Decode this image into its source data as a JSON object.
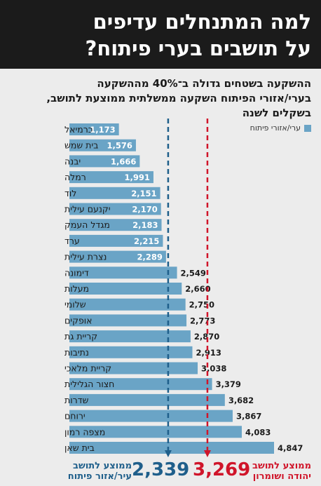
{
  "header": {
    "title_line1": "למה המתנחלים עדיפים",
    "title_line2": "על תושבים בערי פיתוח?"
  },
  "subtitle": {
    "line1": "ההשקעה בשטחים גדולה ב־40% מההשקעה",
    "line2": "בערי/אזורי הפיתוח השקעה ממשלתית ממוצעת לתושב,",
    "line3": "בשקלים לשנה"
  },
  "legend": {
    "label": "ערי/אזורי פיתוח"
  },
  "colors": {
    "bar": "#6aa4c6",
    "avg_dev": "#1f5f8b",
    "avg_settle": "#d0152a",
    "header_bg": "#1b1b1b"
  },
  "averages": {
    "dev_value": "2,339",
    "dev_label_line1": "ממוצע לתושב",
    "dev_label_line2": "עיר/אזור פיתוח",
    "settle_value": "3,269",
    "settle_label_line1": "ממוצע לתושב",
    "settle_label_line2": "יהודה ושומרון"
  },
  "chart_data": {
    "type": "bar",
    "orientation": "horizontal",
    "title": "ההשקעה בשטחים גדולה ב־40% מההשקעה בערי/אזורי הפיתוח השקעה ממשלתית ממוצעת לתושב, בשקלים לשנה",
    "unit": "שקלים לשנה",
    "categories": [
      "כרמיאל",
      "בית שמש",
      "יבנה",
      "רמלה",
      "לוד",
      "יקנעם עילית",
      "מגדל העמק",
      "ערד",
      "נצרת עילית",
      "דימונה",
      "מעלות",
      "שלומי",
      "אופקים",
      "קריית גת",
      "נתיבות",
      "קריית מלאכי",
      "חצור הגלילית",
      "שדרות",
      "ירוחם",
      "מצפה רמון",
      "בית שאן"
    ],
    "values": [
      1173,
      1576,
      1666,
      1991,
      2151,
      2170,
      2183,
      2215,
      2289,
      2549,
      2660,
      2750,
      2773,
      2870,
      2913,
      3038,
      3379,
      3682,
      3867,
      4083,
      4847
    ],
    "value_labels": [
      "1,173",
      "1,576",
      "1,666",
      "1,991",
      "2,151",
      "2,170",
      "2,183",
      "2,215",
      "2,289",
      "2,549",
      "2,660",
      "2,750",
      "2,773",
      "2,870",
      "2,913",
      "3,038",
      "3,379",
      "3,682",
      "3,867",
      "4,083",
      "4,847"
    ],
    "series": [
      {
        "name": "ערי/אזורי פיתוח"
      }
    ],
    "reference_lines": [
      {
        "value": 2339
      },
      {
        "value": 3269
      }
    ],
    "xlim": [
      0,
      4847
    ],
    "grid": false,
    "legend_position": "top-right"
  }
}
